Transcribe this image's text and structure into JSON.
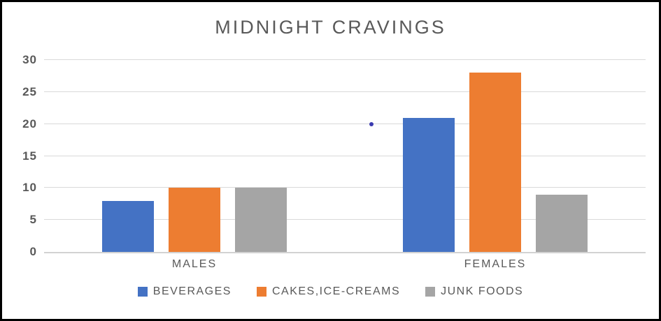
{
  "chart_data": {
    "type": "bar",
    "title": "MIDNIGHT CRAVINGS",
    "categories": [
      "MALES",
      "FEMALES"
    ],
    "series": [
      {
        "name": "BEVERAGES",
        "color": "#4472C4",
        "values": [
          8,
          21
        ]
      },
      {
        "name": "CAKES,ICE-CREAMS",
        "color": "#ED7D31",
        "values": [
          10,
          28
        ]
      },
      {
        "name": "JUNK FOODS",
        "color": "#A5A5A5",
        "values": [
          10,
          9
        ]
      }
    ],
    "xlabel": "",
    "ylabel": "",
    "ylim": [
      0,
      30
    ],
    "yticks": [
      0,
      5,
      10,
      15,
      20,
      25,
      30
    ],
    "grid": true,
    "legend_position": "bottom"
  },
  "colors": {
    "title_text": "#595959",
    "axis_text": "#595959",
    "gridline": "#D9D9D9",
    "axis_line": "#D2D2D2",
    "frame_border": "#000000",
    "background": "#FFFFFF",
    "stray_dot": "#3A3AB0"
  }
}
